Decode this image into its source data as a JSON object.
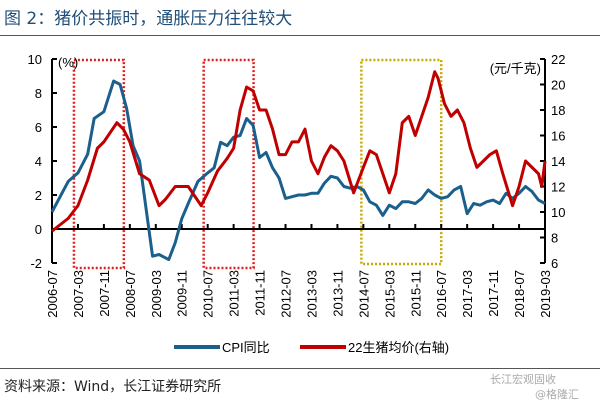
{
  "title": "图 2：猪价共振时，通胀压力往往较大",
  "source": "资料来源：Wind，长江证券研究所",
  "watermark": [
    "长江宏观固收",
    "@格隆汇"
  ],
  "chart_data": {
    "type": "line",
    "left_unit": "(%)",
    "right_unit": "(元/千克)",
    "ylim": [
      -2,
      10
    ],
    "yticks": [
      -2,
      0,
      2,
      4,
      6,
      8,
      10
    ],
    "ylim_right": [
      6,
      22
    ],
    "yticks_right": [
      6,
      8,
      10,
      12,
      14,
      16,
      18,
      20,
      22
    ],
    "xticks": [
      "2006-07",
      "2007-03",
      "2007-11",
      "2008-07",
      "2009-03",
      "2009-11",
      "2010-07",
      "2011-03",
      "2011-11",
      "2012-07",
      "2013-03",
      "2013-11",
      "2014-07",
      "2015-03",
      "2015-11",
      "2016-07",
      "2017-03",
      "2017-11",
      "2018-07",
      "2019-03"
    ],
    "colors": {
      "cpi": "#1b5f8c",
      "pig": "#c00000",
      "box_red": "#e02020",
      "box_yellow": "#c8a800"
    },
    "highlight_boxes": [
      {
        "from": "2007-03",
        "to": "2008-07",
        "color": "red"
      },
      {
        "from": "2010-07",
        "to": "2011-11",
        "color": "red"
      },
      {
        "from": "2014-07",
        "to": "2016-07",
        "color": "yellow"
      }
    ],
    "series": [
      {
        "name": "CPI同比",
        "axis": "left",
        "points": [
          [
            "2006-07",
            1.0
          ],
          [
            "2006-12",
            2.8
          ],
          [
            "2007-03",
            3.3
          ],
          [
            "2007-06",
            4.4
          ],
          [
            "2007-08",
            6.5
          ],
          [
            "2007-11",
            6.9
          ],
          [
            "2008-02",
            8.7
          ],
          [
            "2008-04",
            8.5
          ],
          [
            "2008-06",
            7.1
          ],
          [
            "2008-08",
            4.9
          ],
          [
            "2008-10",
            4.0
          ],
          [
            "2008-12",
            1.2
          ],
          [
            "2009-02",
            -1.6
          ],
          [
            "2009-04",
            -1.5
          ],
          [
            "2009-07",
            -1.8
          ],
          [
            "2009-09",
            -0.8
          ],
          [
            "2009-11",
            0.6
          ],
          [
            "2010-01",
            1.5
          ],
          [
            "2010-04",
            2.8
          ],
          [
            "2010-07",
            3.3
          ],
          [
            "2010-09",
            3.6
          ],
          [
            "2010-11",
            5.1
          ],
          [
            "2011-01",
            4.9
          ],
          [
            "2011-03",
            5.4
          ],
          [
            "2011-05",
            5.5
          ],
          [
            "2011-07",
            6.5
          ],
          [
            "2011-09",
            6.1
          ],
          [
            "2011-11",
            4.2
          ],
          [
            "2012-01",
            4.5
          ],
          [
            "2012-03",
            3.6
          ],
          [
            "2012-05",
            3.0
          ],
          [
            "2012-07",
            1.8
          ],
          [
            "2012-09",
            1.9
          ],
          [
            "2012-11",
            2.0
          ],
          [
            "2013-01",
            2.0
          ],
          [
            "2013-03",
            2.1
          ],
          [
            "2013-05",
            2.1
          ],
          [
            "2013-07",
            2.7
          ],
          [
            "2013-09",
            3.1
          ],
          [
            "2013-11",
            3.0
          ],
          [
            "2014-01",
            2.5
          ],
          [
            "2014-03",
            2.4
          ],
          [
            "2014-05",
            2.5
          ],
          [
            "2014-07",
            2.3
          ],
          [
            "2014-09",
            1.6
          ],
          [
            "2014-11",
            1.4
          ],
          [
            "2015-01",
            0.8
          ],
          [
            "2015-03",
            1.4
          ],
          [
            "2015-05",
            1.2
          ],
          [
            "2015-07",
            1.6
          ],
          [
            "2015-09",
            1.6
          ],
          [
            "2015-11",
            1.5
          ],
          [
            "2016-01",
            1.8
          ],
          [
            "2016-03",
            2.3
          ],
          [
            "2016-05",
            2.0
          ],
          [
            "2016-07",
            1.8
          ],
          [
            "2016-09",
            1.9
          ],
          [
            "2016-11",
            2.3
          ],
          [
            "2017-01",
            2.5
          ],
          [
            "2017-03",
            0.9
          ],
          [
            "2017-05",
            1.5
          ],
          [
            "2017-07",
            1.4
          ],
          [
            "2017-09",
            1.6
          ],
          [
            "2017-11",
            1.7
          ],
          [
            "2018-01",
            1.5
          ],
          [
            "2018-03",
            2.1
          ],
          [
            "2018-05",
            1.8
          ],
          [
            "2018-07",
            2.1
          ],
          [
            "2018-09",
            2.5
          ],
          [
            "2018-11",
            2.2
          ],
          [
            "2019-01",
            1.7
          ],
          [
            "2019-03",
            1.5
          ]
        ]
      },
      {
        "name": "22生猪均价(右轴)",
        "axis": "right",
        "points": [
          [
            "2006-07",
            8.5
          ],
          [
            "2006-12",
            9.5
          ],
          [
            "2007-03",
            10.5
          ],
          [
            "2007-06",
            12.5
          ],
          [
            "2007-09",
            15
          ],
          [
            "2007-11",
            15.5
          ],
          [
            "2008-03",
            17.0
          ],
          [
            "2008-05",
            16.5
          ],
          [
            "2008-07",
            15.5
          ],
          [
            "2008-10",
            13.0
          ],
          [
            "2009-01",
            12.5
          ],
          [
            "2009-04",
            10.5
          ],
          [
            "2009-06",
            11.0
          ],
          [
            "2009-09",
            12.0
          ],
          [
            "2009-11",
            12.0
          ],
          [
            "2010-01",
            12.0
          ],
          [
            "2010-05",
            10.5
          ],
          [
            "2010-07",
            11.5
          ],
          [
            "2010-10",
            13.2
          ],
          [
            "2011-01",
            14.2
          ],
          [
            "2011-03",
            15.0
          ],
          [
            "2011-05",
            18.0
          ],
          [
            "2011-07",
            19.8
          ],
          [
            "2011-09",
            19.5
          ],
          [
            "2011-11",
            18.0
          ],
          [
            "2012-01",
            18.0
          ],
          [
            "2012-03",
            16.5
          ],
          [
            "2012-05",
            14.5
          ],
          [
            "2012-07",
            14.5
          ],
          [
            "2012-09",
            15.5
          ],
          [
            "2012-11",
            15.5
          ],
          [
            "2013-01",
            16.5
          ],
          [
            "2013-03",
            14.0
          ],
          [
            "2013-05",
            13.0
          ],
          [
            "2013-07",
            14.3
          ],
          [
            "2013-09",
            15.2
          ],
          [
            "2013-11",
            14.8
          ],
          [
            "2014-01",
            14.0
          ],
          [
            "2014-04",
            11.5
          ],
          [
            "2014-07",
            13.5
          ],
          [
            "2014-09",
            14.8
          ],
          [
            "2014-11",
            14.5
          ],
          [
            "2015-01",
            13.0
          ],
          [
            "2015-03",
            11.5
          ],
          [
            "2015-05",
            13.0
          ],
          [
            "2015-07",
            17.0
          ],
          [
            "2015-09",
            17.5
          ],
          [
            "2015-11",
            16.0
          ],
          [
            "2016-01",
            17.5
          ],
          [
            "2016-03",
            19.0
          ],
          [
            "2016-05",
            21.0
          ],
          [
            "2016-06",
            20.5
          ],
          [
            "2016-08",
            18.5
          ],
          [
            "2016-10",
            17.5
          ],
          [
            "2016-12",
            18.0
          ],
          [
            "2017-02",
            17.0
          ],
          [
            "2017-04",
            15.0
          ],
          [
            "2017-06",
            13.5
          ],
          [
            "2017-08",
            14.0
          ],
          [
            "2017-10",
            14.5
          ],
          [
            "2017-12",
            14.8
          ],
          [
            "2018-02",
            13.0
          ],
          [
            "2018-05",
            10.5
          ],
          [
            "2018-07",
            12.0
          ],
          [
            "2018-09",
            14.0
          ],
          [
            "2018-11",
            13.5
          ],
          [
            "2019-01",
            13.0
          ],
          [
            "2019-02",
            12.0
          ],
          [
            "2019-03",
            14.0
          ]
        ]
      }
    ]
  }
}
